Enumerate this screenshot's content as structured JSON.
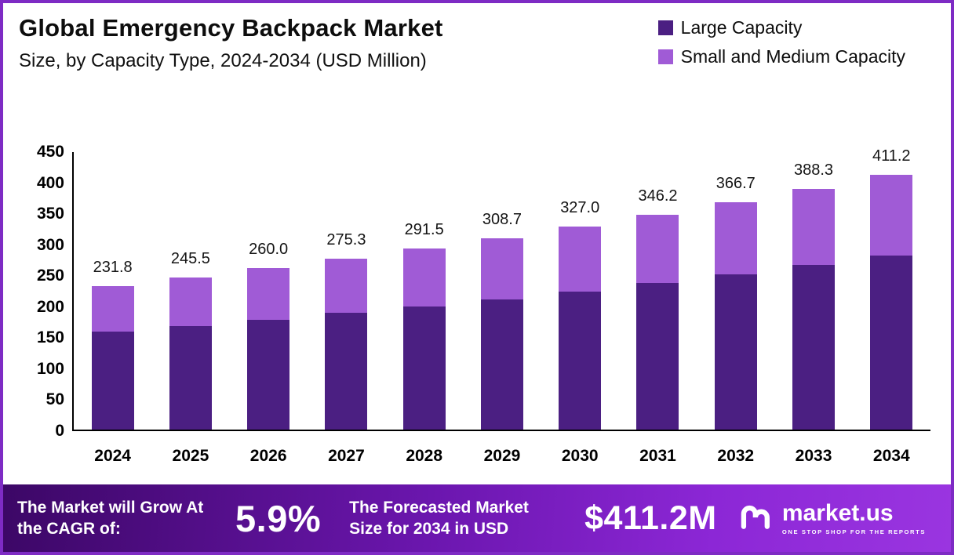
{
  "header": {
    "title": "Global Emergency Backpack Market",
    "subtitle": "Size, by Capacity Type, 2024-2034 (USD Million)"
  },
  "legend": [
    {
      "label": "Large Capacity",
      "color": "#4B1F82"
    },
    {
      "label": "Small and Medium Capacity",
      "color": "#A05BD6"
    }
  ],
  "chart_data": {
    "type": "bar",
    "stacked": true,
    "title": "Global Emergency Backpack Market Size, by Capacity Type, 2024-2034 (USD Million)",
    "xlabel": "",
    "ylabel": "",
    "ylim": [
      0,
      450
    ],
    "yticks": [
      0,
      50,
      100,
      150,
      200,
      250,
      300,
      350,
      400,
      450
    ],
    "grid": false,
    "legend_position": "top-right",
    "categories": [
      "2024",
      "2025",
      "2026",
      "2027",
      "2028",
      "2029",
      "2030",
      "2031",
      "2032",
      "2033",
      "2034"
    ],
    "series": [
      {
        "name": "Large Capacity",
        "color": "#4B1F82",
        "values": [
          158.0,
          167.5,
          177.5,
          188.0,
          199.0,
          210.5,
          223.0,
          236.5,
          250.5,
          265.0,
          281.0
        ]
      },
      {
        "name": "Small and Medium Capacity",
        "color": "#A05BD6",
        "values": [
          73.8,
          78.0,
          82.5,
          87.3,
          92.5,
          98.2,
          104.0,
          109.7,
          116.2,
          123.3,
          130.2
        ]
      }
    ],
    "totals": [
      231.8,
      245.5,
      260.0,
      275.3,
      291.5,
      308.7,
      327.0,
      346.2,
      366.7,
      388.3,
      411.2
    ]
  },
  "footer": {
    "cagr_label": "The Market will Grow At the CAGR of:",
    "cagr_value": "5.9%",
    "forecast_label": "The Forecasted Market Size for 2034 in USD",
    "forecast_value": "$411.2M",
    "brand": "market.us",
    "tagline": "ONE STOP SHOP FOR THE REPORTS"
  }
}
